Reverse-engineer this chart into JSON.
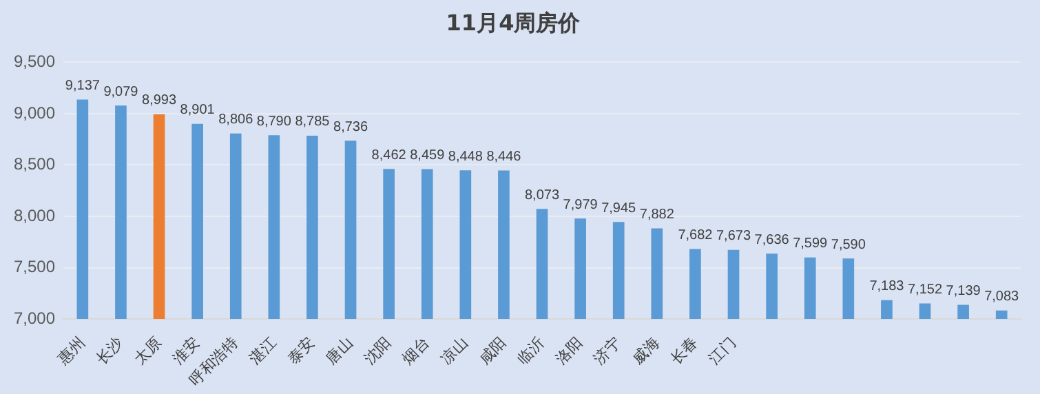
{
  "chart_data": {
    "type": "bar",
    "title": "11月4周房价",
    "categories": [
      "惠州",
      "长沙",
      "太原",
      "淮安",
      "呼和浩特",
      "湛江",
      "泰安",
      "唐山",
      "沈阳",
      "烟台",
      "凉山",
      "咸阳",
      "临沂",
      "洛阳",
      "济宁",
      "威海",
      "长春",
      "江门",
      null,
      null,
      null,
      null,
      null,
      null,
      null
    ],
    "values": [
      9137,
      9079,
      8993,
      8901,
      8806,
      8790,
      8785,
      8736,
      8462,
      8459,
      8448,
      8446,
      8073,
      7979,
      7945,
      7882,
      7682,
      7673,
      7636,
      7599,
      7590,
      7183,
      7152,
      7139,
      7083
    ],
    "colors": [
      "#5b9bd5",
      "#5b9bd5",
      "#ed7d31",
      "#5b9bd5",
      "#5b9bd5",
      "#5b9bd5",
      "#5b9bd5",
      "#5b9bd5",
      "#5b9bd5",
      "#5b9bd5",
      "#5b9bd5",
      "#5b9bd5",
      "#5b9bd5",
      "#5b9bd5",
      "#5b9bd5",
      "#5b9bd5",
      "#5b9bd5",
      "#5b9bd5",
      "#5b9bd5",
      "#5b9bd5",
      "#5b9bd5",
      "#5b9bd5",
      "#5b9bd5",
      "#5b9bd5",
      "#5b9bd5"
    ],
    "ylim": [
      7000,
      9500
    ],
    "yticks": [
      {
        "value": 7000,
        "label": "7,000"
      },
      {
        "value": 7500,
        "label": "7,500"
      },
      {
        "value": 8000,
        "label": "8,000"
      },
      {
        "value": 8500,
        "label": "8,500"
      },
      {
        "value": 9000,
        "label": "9,000"
      },
      {
        "value": 9500,
        "label": "9,500"
      }
    ],
    "value_labels": [
      "9,137",
      "9,079",
      "8,993",
      "8,901",
      "8,806",
      "8,790",
      "8,785",
      "8,736",
      "8,462",
      "8,459",
      "8,448",
      "8,446",
      "8,073",
      "7,979",
      "7,945",
      "7,882",
      "7,682",
      "7,673",
      "7,636",
      "7,599",
      "7,590",
      "7,183",
      "7,152",
      "7,139",
      "7,083"
    ],
    "grid": "y",
    "legend": false
  }
}
